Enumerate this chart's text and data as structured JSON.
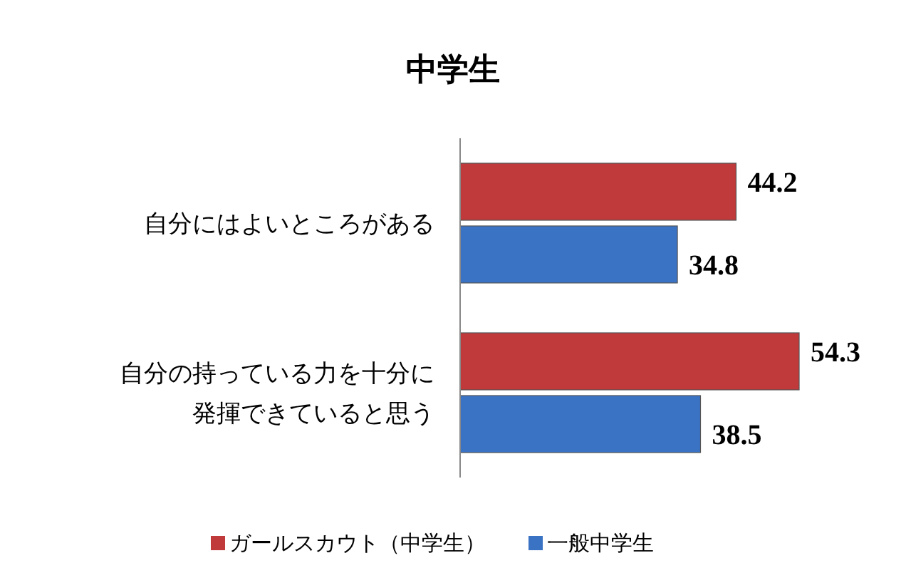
{
  "chart_data": {
    "type": "bar",
    "orientation": "horizontal",
    "title": "中学生",
    "categories": [
      "自分にはよいところがある",
      "自分の持っている力を十分に発揮できていると思う"
    ],
    "series": [
      {
        "name": "ガールスカウト（中学生）",
        "color": "#c0393b",
        "values": [
          44.2,
          54.3
        ]
      },
      {
        "name": "一般中学生",
        "color": "#3a72c4",
        "values": [
          34.8,
          38.5
        ]
      }
    ],
    "data_labels": true,
    "legend": "bottom"
  }
}
